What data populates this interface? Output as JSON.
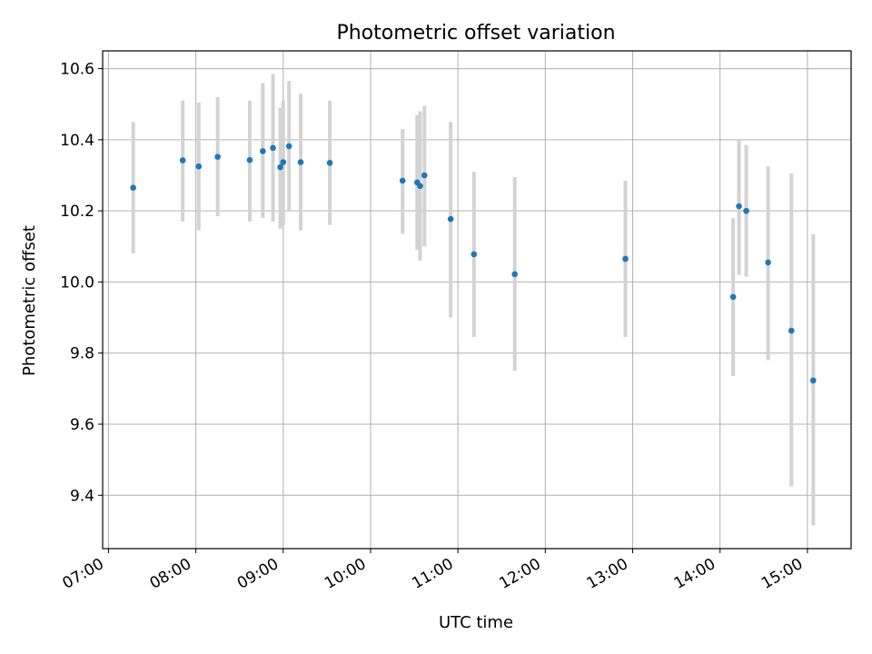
{
  "chart_data": {
    "type": "scatter",
    "title": "Photometric offset variation",
    "xlabel": "UTC time",
    "ylabel": "Photometric offset",
    "grid": true,
    "xlim": [
      "06:56",
      "15:30"
    ],
    "ylim": [
      9.25,
      10.65
    ],
    "xticks": [
      "07:00",
      "08:00",
      "09:00",
      "10:00",
      "11:00",
      "12:00",
      "13:00",
      "14:00",
      "15:00"
    ],
    "yticks": [
      "9.4",
      "9.6",
      "9.8",
      "10.0",
      "10.2",
      "10.4",
      "10.6"
    ],
    "colors": {
      "point": "#1f77b4",
      "errorbar": "#d3d3d3",
      "grid": "#b0b0b0"
    },
    "points": [
      {
        "t": "07:17",
        "y": 10.265,
        "lo": 10.08,
        "hi": 10.45
      },
      {
        "t": "07:51",
        "y": 10.342,
        "lo": 10.17,
        "hi": 10.51
      },
      {
        "t": "08:02",
        "y": 10.325,
        "lo": 10.145,
        "hi": 10.505
      },
      {
        "t": "08:15",
        "y": 10.352,
        "lo": 10.185,
        "hi": 10.52
      },
      {
        "t": "08:37",
        "y": 10.343,
        "lo": 10.17,
        "hi": 10.51
      },
      {
        "t": "08:46",
        "y": 10.368,
        "lo": 10.18,
        "hi": 10.56
      },
      {
        "t": "08:53",
        "y": 10.377,
        "lo": 10.17,
        "hi": 10.585
      },
      {
        "t": "08:58",
        "y": 10.323,
        "lo": 10.15,
        "hi": 10.49
      },
      {
        "t": "09:00",
        "y": 10.337,
        "lo": 10.16,
        "hi": 10.51
      },
      {
        "t": "09:04",
        "y": 10.382,
        "lo": 10.2,
        "hi": 10.565
      },
      {
        "t": "09:12",
        "y": 10.337,
        "lo": 10.145,
        "hi": 10.53
      },
      {
        "t": "09:32",
        "y": 10.335,
        "lo": 10.16,
        "hi": 10.51
      },
      {
        "t": "10:22",
        "y": 10.285,
        "lo": 10.135,
        "hi": 10.43
      },
      {
        "t": "10:32",
        "y": 10.28,
        "lo": 10.09,
        "hi": 10.47
      },
      {
        "t": "10:34",
        "y": 10.27,
        "lo": 10.06,
        "hi": 10.48
      },
      {
        "t": "10:37",
        "y": 10.3,
        "lo": 10.1,
        "hi": 10.495
      },
      {
        "t": "10:55",
        "y": 10.177,
        "lo": 9.9,
        "hi": 10.45
      },
      {
        "t": "11:11",
        "y": 10.078,
        "lo": 9.845,
        "hi": 10.31
      },
      {
        "t": "11:39",
        "y": 10.022,
        "lo": 9.75,
        "hi": 10.295
      },
      {
        "t": "12:55",
        "y": 10.065,
        "lo": 9.845,
        "hi": 10.285
      },
      {
        "t": "14:09",
        "y": 9.958,
        "lo": 9.735,
        "hi": 10.18
      },
      {
        "t": "14:13",
        "y": 10.213,
        "lo": 10.02,
        "hi": 10.4
      },
      {
        "t": "14:18",
        "y": 10.2,
        "lo": 10.015,
        "hi": 10.385
      },
      {
        "t": "14:33",
        "y": 10.055,
        "lo": 9.78,
        "hi": 10.325
      },
      {
        "t": "14:49",
        "y": 9.863,
        "lo": 9.425,
        "hi": 10.305
      },
      {
        "t": "15:04",
        "y": 9.723,
        "lo": 9.315,
        "hi": 10.135
      }
    ]
  }
}
